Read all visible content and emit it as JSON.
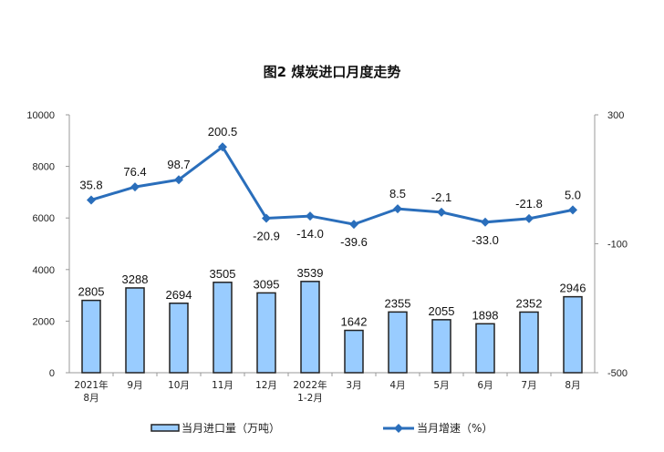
{
  "chart_data": {
    "type": "bar+line",
    "title": "图2  煤炭进口月度走势",
    "categories": [
      [
        "2021年",
        "8月"
      ],
      [
        "9月"
      ],
      [
        "10月"
      ],
      [
        "11月"
      ],
      [
        "12月"
      ],
      [
        "2022年",
        "1-2月"
      ],
      [
        "3月"
      ],
      [
        "4月"
      ],
      [
        "5月"
      ],
      [
        "6月"
      ],
      [
        "7月"
      ],
      [
        "8月"
      ]
    ],
    "series": [
      {
        "name": "当月进口量（万吨）",
        "type": "bar",
        "axis": "left",
        "color": "#99ccff",
        "values": [
          2805,
          3288,
          2694,
          3505,
          3095,
          3539,
          1642,
          2355,
          2055,
          1898,
          2352,
          2946
        ]
      },
      {
        "name": "当月增速（%）",
        "type": "line",
        "axis": "right",
        "color": "#2a6ebb",
        "values": [
          35.8,
          76.4,
          98.7,
          200.5,
          -20.9,
          -14.0,
          -39.6,
          8.5,
          -2.1,
          -33.0,
          -21.8,
          5.0
        ]
      }
    ],
    "left_axis": {
      "ylim": [
        0,
        10000
      ],
      "ticks": [
        0,
        2000,
        4000,
        6000,
        8000,
        10000
      ]
    },
    "right_axis": {
      "ylim": [
        -500,
        300
      ],
      "ticks": [
        300,
        -100,
        -500
      ]
    },
    "grid": false,
    "legend": "bottom"
  }
}
